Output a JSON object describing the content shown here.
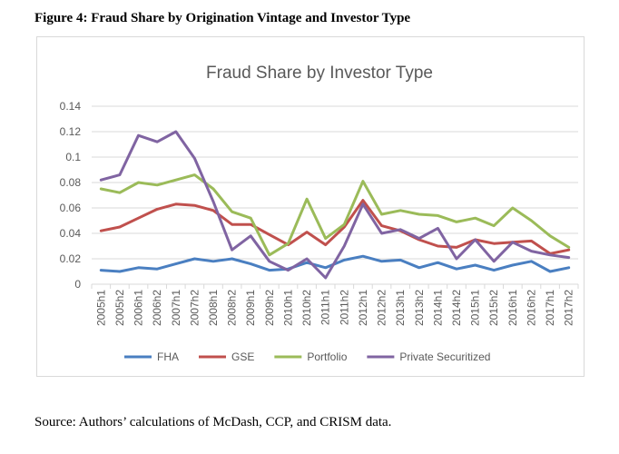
{
  "figure_caption": "Figure 4: Fraud Share by Origination Vintage and Investor Type",
  "source_note": "Source: Authors’ calculations of McDash, CCP, and CRISM data.",
  "chart_data": {
    "type": "line",
    "title": "Fraud Share by Investor Type",
    "xlabel": "",
    "ylabel": "",
    "ylim": [
      0,
      0.14
    ],
    "yticks": [
      "0",
      "0.02",
      "0.04",
      "0.06",
      "0.08",
      "0.1",
      "0.12",
      "0.14"
    ],
    "grid": true,
    "legend_position": "bottom",
    "categories": [
      "2005h1",
      "2005h2",
      "2006h1",
      "2006h2",
      "2007h1",
      "2007h2",
      "2008h1",
      "2008h2",
      "2009h1",
      "2009h2",
      "2010h1",
      "2010h2",
      "2011h1",
      "2011h2",
      "2012h1",
      "2012h2",
      "2013h1",
      "2013h2",
      "2014h1",
      "2014h2",
      "2015h1",
      "2015h2",
      "2016h1",
      "2016h2",
      "2017h1",
      "2017h2"
    ],
    "series": [
      {
        "name": "FHA",
        "color": "#4a7fc1",
        "values": [
          0.011,
          0.01,
          0.013,
          0.012,
          0.016,
          0.02,
          0.018,
          0.02,
          0.016,
          0.011,
          0.012,
          0.017,
          0.013,
          0.019,
          0.022,
          0.018,
          0.019,
          0.013,
          0.017,
          0.012,
          0.015,
          0.011,
          0.015,
          0.018,
          0.01,
          0.013
        ]
      },
      {
        "name": "GSE",
        "color": "#c0504d",
        "values": [
          0.042,
          0.045,
          0.052,
          0.059,
          0.063,
          0.062,
          0.058,
          0.047,
          0.047,
          0.039,
          0.031,
          0.041,
          0.031,
          0.045,
          0.066,
          0.046,
          0.042,
          0.035,
          0.03,
          0.029,
          0.035,
          0.032,
          0.033,
          0.034,
          0.024,
          0.027
        ]
      },
      {
        "name": "Portfolio",
        "color": "#9bbb59",
        "values": [
          0.075,
          0.072,
          0.08,
          0.078,
          0.082,
          0.086,
          0.075,
          0.057,
          0.052,
          0.023,
          0.032,
          0.067,
          0.036,
          0.047,
          0.081,
          0.055,
          0.058,
          0.055,
          0.054,
          0.049,
          0.052,
          0.046,
          0.06,
          0.05,
          0.038,
          0.029
        ]
      },
      {
        "name": "Private Securitized",
        "color": "#8064a2",
        "values": [
          0.082,
          0.086,
          0.117,
          0.112,
          0.12,
          0.099,
          0.065,
          0.027,
          0.038,
          0.018,
          0.011,
          0.02,
          0.005,
          0.03,
          0.063,
          0.04,
          0.043,
          0.036,
          0.044,
          0.02,
          0.035,
          0.018,
          0.033,
          0.026,
          0.023,
          0.021
        ]
      }
    ]
  }
}
